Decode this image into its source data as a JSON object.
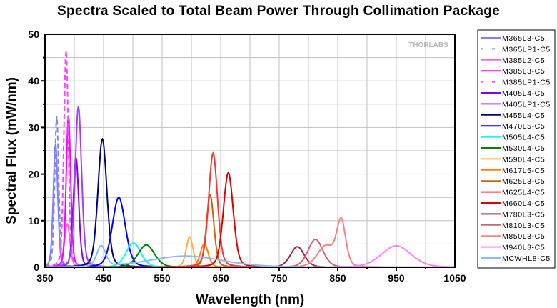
{
  "chart_data": {
    "type": "line",
    "title": "Spectra Scaled to Total Beam Power Through Collimation Package",
    "xlabel": "Wavelength (nm)",
    "ylabel": "Spectral Flux (mW/nm)",
    "xlim": [
      350,
      1050
    ],
    "ylim": [
      0,
      50
    ],
    "xticks": [
      350,
      450,
      550,
      650,
      750,
      850,
      950,
      1050
    ],
    "yticks": [
      0,
      10,
      20,
      30,
      40,
      50
    ],
    "grid": true,
    "legend_position": "right-outside",
    "watermark": "THORLABS",
    "series_model": "peak wavelength (nm), peak flux (mW/nm), FWHM (nm)",
    "series": [
      {
        "name": "M365L3-C5",
        "color": "#8080ff",
        "dash": false,
        "peaks": [
          [
            368,
            26.5,
            9
          ]
        ]
      },
      {
        "name": "M365LP1-C5",
        "color": "#8080ff",
        "dash": true,
        "peaks": [
          [
            370,
            32.5,
            8
          ]
        ]
      },
      {
        "name": "M385L2-C5",
        "color": "#ff66cc",
        "dash": false,
        "peaks": [
          [
            388,
            9.3,
            11
          ]
        ]
      },
      {
        "name": "M385L3-C5",
        "color": "#ff00ff",
        "dash": false,
        "peaks": [
          [
            390,
            32.5,
            9
          ]
        ]
      },
      {
        "name": "M385LP1-C5",
        "color": "#ff44ff",
        "dash": true,
        "peaks": [
          [
            386,
            46.5,
            9
          ]
        ]
      },
      {
        "name": "M405L4-C5",
        "color": "#8000ff",
        "dash": false,
        "peaks": [
          [
            403,
            23.5,
            11
          ]
        ]
      },
      {
        "name": "M405LP1-C5",
        "color": "#a040ff",
        "dash": false,
        "peaks": [
          [
            407,
            34.5,
            13
          ]
        ]
      },
      {
        "name": "M455L4-C5",
        "color": "#000080",
        "dash": false,
        "peaks": [
          [
            448,
            27.5,
            18
          ]
        ]
      },
      {
        "name": "M470L5-C5",
        "color": "#0000ff",
        "dash": false,
        "peaks": [
          [
            476,
            15,
            26
          ]
        ]
      },
      {
        "name": "M505L4-C5",
        "color": "#00ffff",
        "dash": false,
        "peaks": [
          [
            501,
            5.2,
            30
          ]
        ]
      },
      {
        "name": "M530L4-C5",
        "color": "#008000",
        "dash": false,
        "peaks": [
          [
            523,
            4.8,
            33
          ]
        ]
      },
      {
        "name": "M590L4-C5",
        "color": "#ffb040",
        "dash": false,
        "peaks": [
          [
            597,
            6.5,
            14
          ]
        ]
      },
      {
        "name": "M617L5-C5",
        "color": "#ff8000",
        "dash": false,
        "peaks": [
          [
            622,
            5,
            16
          ]
        ]
      },
      {
        "name": "M625L3-C5",
        "color": "#cc6600",
        "dash": false,
        "peaks": [
          [
            632,
            15.5,
            15
          ]
        ]
      },
      {
        "name": "M625L4-C5",
        "color": "#ff3333",
        "dash": false,
        "peaks": [
          [
            637,
            24.5,
            18
          ]
        ]
      },
      {
        "name": "M660L4-C5",
        "color": "#dd0000",
        "dash": false,
        "peaks": [
          [
            663,
            20.3,
            20
          ]
        ]
      },
      {
        "name": "M780L3-C5",
        "color": "#aa2244",
        "dash": false,
        "peaks": [
          [
            781,
            4.4,
            28
          ]
        ]
      },
      {
        "name": "M810L3-C5",
        "color": "#cc6677",
        "dash": false,
        "peaks": [
          [
            812,
            6,
            30
          ]
        ]
      },
      {
        "name": "M850L3-C5",
        "color": "#ff8080",
        "dash": false,
        "peaks": [
          [
            856,
            9.5,
            18
          ],
          [
            830,
            4.5,
            35
          ]
        ]
      },
      {
        "name": "M940L3-C5",
        "color": "#ff80ff",
        "dash": false,
        "peaks": [
          [
            950,
            4.6,
            60
          ]
        ]
      },
      {
        "name": "MCWHL8-C5",
        "color": "#88bbff",
        "dash": false,
        "peaks": [
          [
            446,
            4.4,
            18
          ],
          [
            590,
            2.4,
            150
          ]
        ]
      }
    ]
  }
}
